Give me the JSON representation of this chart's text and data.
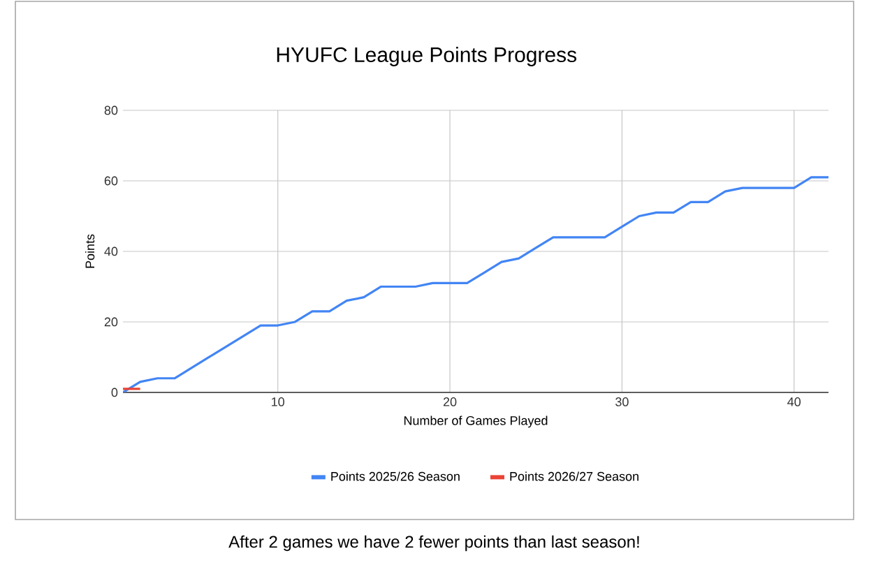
{
  "chart_data": {
    "type": "line",
    "title": "HYUFC League Points Progress",
    "xlabel": "Number of Games Played",
    "ylabel": "Points",
    "series": [
      {
        "name": "Points 2025/26 Season",
        "color": "#4285f4",
        "x": [
          1,
          2,
          3,
          4,
          5,
          6,
          7,
          8,
          9,
          10,
          11,
          12,
          13,
          14,
          15,
          16,
          17,
          18,
          19,
          20,
          21,
          22,
          23,
          24,
          25,
          26,
          27,
          28,
          29,
          30,
          31,
          32,
          33,
          34,
          35,
          36,
          37,
          38,
          39,
          40,
          41,
          42
        ],
        "values": [
          0,
          3,
          4,
          4,
          7,
          10,
          13,
          16,
          19,
          19,
          20,
          23,
          23,
          26,
          27,
          30,
          30,
          30,
          31,
          31,
          31,
          34,
          37,
          38,
          41,
          44,
          44,
          44,
          44,
          47,
          50,
          51,
          51,
          54,
          54,
          57,
          58,
          58,
          58,
          58,
          61,
          61
        ]
      },
      {
        "name": "Points 2026/27 Season",
        "color": "#ea4335",
        "x": [
          1,
          2
        ],
        "values": [
          1,
          1
        ]
      }
    ],
    "xlim": [
      1,
      42
    ],
    "ylim": [
      0,
      80
    ],
    "xticks": [
      10,
      20,
      30,
      40
    ],
    "yticks": [
      0,
      20,
      40,
      60,
      80
    ],
    "grid": true,
    "legend": "bottom",
    "marker": "none",
    "line_style": "solid",
    "annotations": [
      "After 2 games we have 2 fewer points than last season!"
    ]
  }
}
